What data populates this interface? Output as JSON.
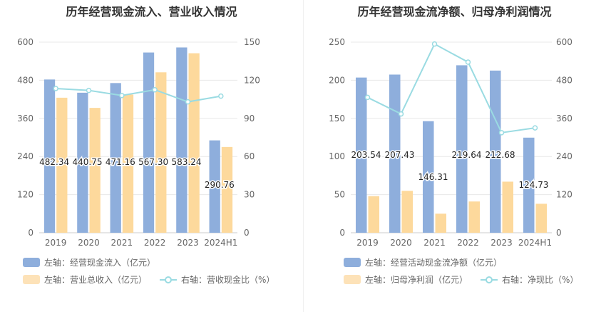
{
  "chart_data": [
    {
      "type": "bar",
      "title": "历年经营现金流入、营业收入情况",
      "categories": [
        "2019",
        "2020",
        "2021",
        "2022",
        "2023",
        "2024H1"
      ],
      "series": [
        {
          "name": "左轴：经营现金流入（亿元）",
          "axis": "left",
          "kind": "bar",
          "color": "#8eaedc",
          "values": [
            482.34,
            440.75,
            471.16,
            567.3,
            583.24,
            290.76
          ],
          "labels": [
            "482.34",
            "440.75",
            "471.16",
            "567.30",
            "583.24",
            "290.76"
          ]
        },
        {
          "name": "左轴：营业总收入（亿元）",
          "axis": "left",
          "kind": "bar",
          "color": "#fdd99c",
          "values": [
            425,
            393,
            435,
            505,
            565,
            270
          ]
        },
        {
          "name": "右轴：营收现金比（%）",
          "axis": "right",
          "kind": "line",
          "color": "#9adbe2",
          "values": [
            113.5,
            112,
            108,
            112.5,
            103,
            107.5
          ]
        }
      ],
      "y_left": {
        "min": 0,
        "max": 600,
        "ticks": [
          "0",
          "120",
          "240",
          "360",
          "480",
          "600"
        ]
      },
      "y_right": {
        "min": 0,
        "max": 150,
        "ticks": [
          "0",
          "30",
          "60",
          "90",
          "120",
          "150"
        ]
      }
    },
    {
      "type": "bar",
      "title": "历年经营现金流净额、归母净利润情况",
      "categories": [
        "2019",
        "2020",
        "2021",
        "2022",
        "2023",
        "2024H1"
      ],
      "series": [
        {
          "name": "左轴：经营活动现金流净额（亿元）",
          "axis": "left",
          "kind": "bar",
          "color": "#8eaedc",
          "values": [
            203.54,
            207.43,
            146.31,
            219.64,
            212.68,
            124.73
          ],
          "labels": [
            "203.54",
            "207.43",
            "146.31",
            "219.64",
            "212.68",
            "124.73"
          ]
        },
        {
          "name": "左轴：归母净利润（亿元）",
          "axis": "left",
          "kind": "bar",
          "color": "#fdd99c",
          "values": [
            48,
            55,
            25,
            41,
            67,
            38
          ]
        },
        {
          "name": "右轴：净现比（%）",
          "axis": "right",
          "kind": "line",
          "color": "#9adbe2",
          "values": [
            426,
            374,
            594,
            537,
            315,
            330
          ]
        }
      ],
      "y_left": {
        "min": 0,
        "max": 250,
        "ticks": [
          "0",
          "50",
          "100",
          "150",
          "200",
          "250"
        ]
      },
      "y_right": {
        "min": 0,
        "max": 600,
        "ticks": [
          "0",
          "120",
          "240",
          "360",
          "480",
          "600"
        ]
      }
    }
  ]
}
